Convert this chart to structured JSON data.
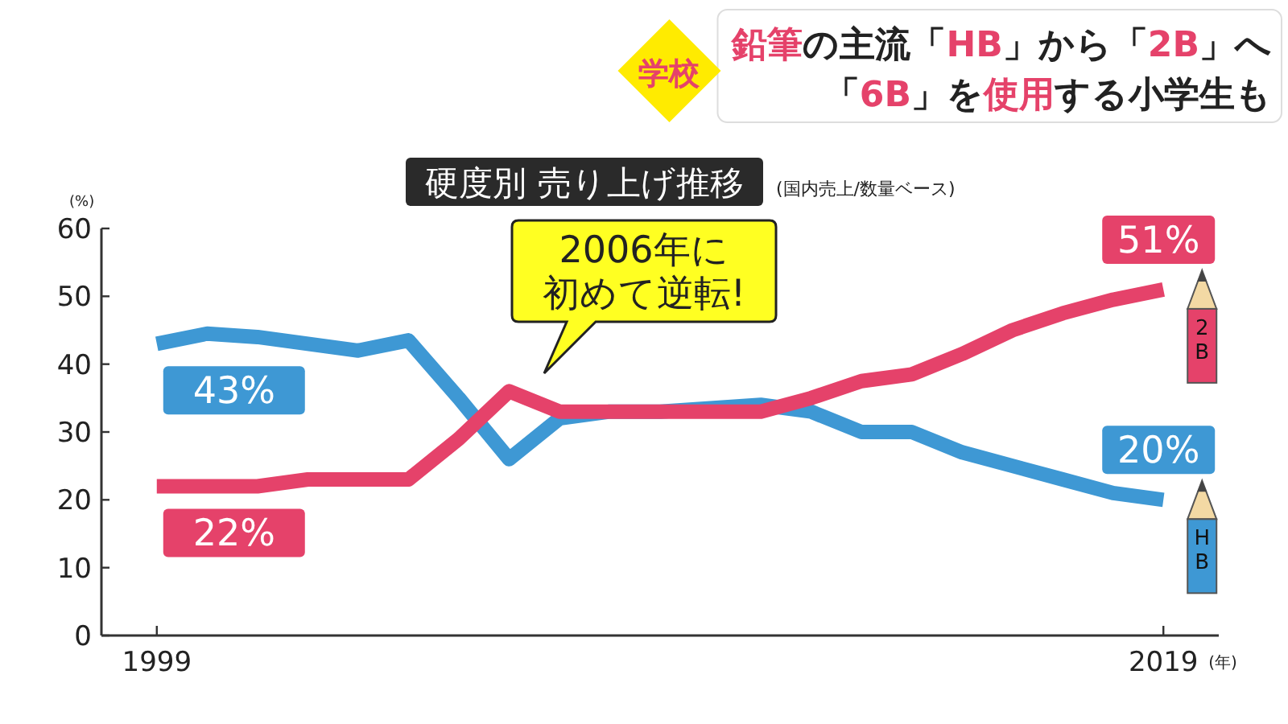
{
  "chart_data": {
    "type": "line",
    "title": "**鉛筆**の主流「**HB**」から「**2B**」へ",
    "subtitle": "「**6B**」を**使用**する小学生も",
    "ylabel": "(%)",
    "xlabel": "(年)",
    "annotations": [
      "学校",
      "硬度別 売り上げ推移",
      "(国内売上/数量ベース)",
      "2006年に初めて逆転!"
    ],
    "x": [
      1999,
      2000,
      2001,
      2002,
      2003,
      2004,
      2005,
      2006,
      2007,
      2008,
      2009,
      2010,
      2011,
      2012,
      2013,
      2014,
      2015,
      2016,
      2017,
      2018,
      2019
    ],
    "series": [
      {
        "name": "HB",
        "color": "#3e98d4",
        "values": [
          43,
          44.5,
          44,
          43,
          42,
          43.5,
          35,
          26,
          32,
          33,
          33,
          33.5,
          34,
          33,
          30,
          30,
          27,
          25,
          23,
          21,
          20
        ],
        "value_labels": [
          "43%",
          null,
          null,
          null,
          null,
          null,
          null,
          null,
          null,
          null,
          null,
          null,
          null,
          null,
          null,
          null,
          null,
          null,
          null,
          null,
          "20%"
        ]
      },
      {
        "name": "2B",
        "color": "#e5426a",
        "values": [
          22,
          22,
          22,
          23,
          23,
          23,
          29,
          36,
          33,
          33,
          33,
          33,
          33,
          35,
          37.5,
          38.5,
          41.5,
          45,
          47.5,
          49.5,
          51
        ],
        "value_labels": [
          "22%",
          null,
          null,
          null,
          null,
          null,
          null,
          null,
          null,
          null,
          null,
          null,
          null,
          null,
          null,
          null,
          null,
          null,
          null,
          null,
          "51%"
        ]
      }
    ],
    "xlim": [
      1997.9,
      2020.1
    ],
    "xticks": [
      1999,
      2019
    ],
    "ylim": [
      0,
      60
    ],
    "yticks": [
      0,
      10,
      20,
      30,
      40,
      50,
      60
    ],
    "grid": false,
    "legend": false,
    "marker": "none",
    "line_style": "solid"
  }
}
